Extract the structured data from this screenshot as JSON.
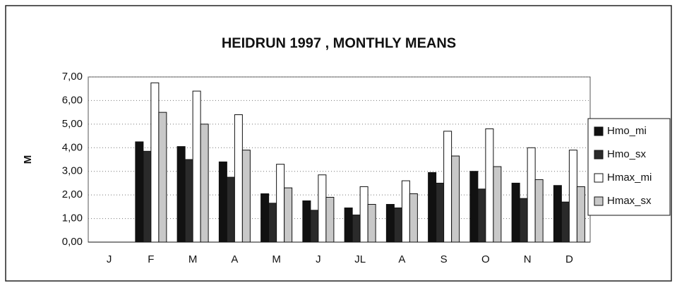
{
  "chart_data": {
    "type": "bar",
    "title": "HEIDRUN 1997 , MONTHLY MEANS",
    "y_label": "M",
    "categories": [
      "J",
      "F",
      "M",
      "A",
      "M",
      "J",
      "JL",
      "A",
      "S",
      "O",
      "N",
      "D"
    ],
    "series": [
      {
        "name": "Hmo_mi",
        "color": "#111111",
        "values": [
          null,
          4.25,
          4.05,
          3.4,
          2.05,
          1.75,
          1.45,
          1.6,
          2.95,
          3.0,
          2.5,
          2.4
        ]
      },
      {
        "name": "Hmo_sx",
        "color": "#2a2a2a",
        "values": [
          null,
          3.85,
          3.5,
          2.75,
          1.65,
          1.35,
          1.15,
          1.45,
          2.5,
          2.25,
          1.85,
          1.7
        ]
      },
      {
        "name": "Hmax_mi",
        "color": "#ffffff",
        "values": [
          null,
          6.75,
          6.4,
          5.4,
          3.3,
          2.85,
          2.35,
          2.6,
          4.7,
          4.8,
          4.0,
          3.9
        ]
      },
      {
        "name": "Hmax_sx",
        "color": "#c8c8c8",
        "values": [
          null,
          5.5,
          5.0,
          3.9,
          2.3,
          1.9,
          1.6,
          2.05,
          3.65,
          3.2,
          2.65,
          2.35
        ]
      }
    ],
    "ylim": [
      0,
      7
    ],
    "yticks": [
      {
        "value": 0,
        "label": "0,00"
      },
      {
        "value": 1,
        "label": "1,00"
      },
      {
        "value": 2,
        "label": "2,00"
      },
      {
        "value": 3,
        "label": "3,00"
      },
      {
        "value": 4,
        "label": "4,00"
      },
      {
        "value": 5,
        "label": "5,00"
      },
      {
        "value": 6,
        "label": "6,00"
      },
      {
        "value": 7,
        "label": "7,00"
      }
    ],
    "grid": true,
    "legend": "right"
  }
}
